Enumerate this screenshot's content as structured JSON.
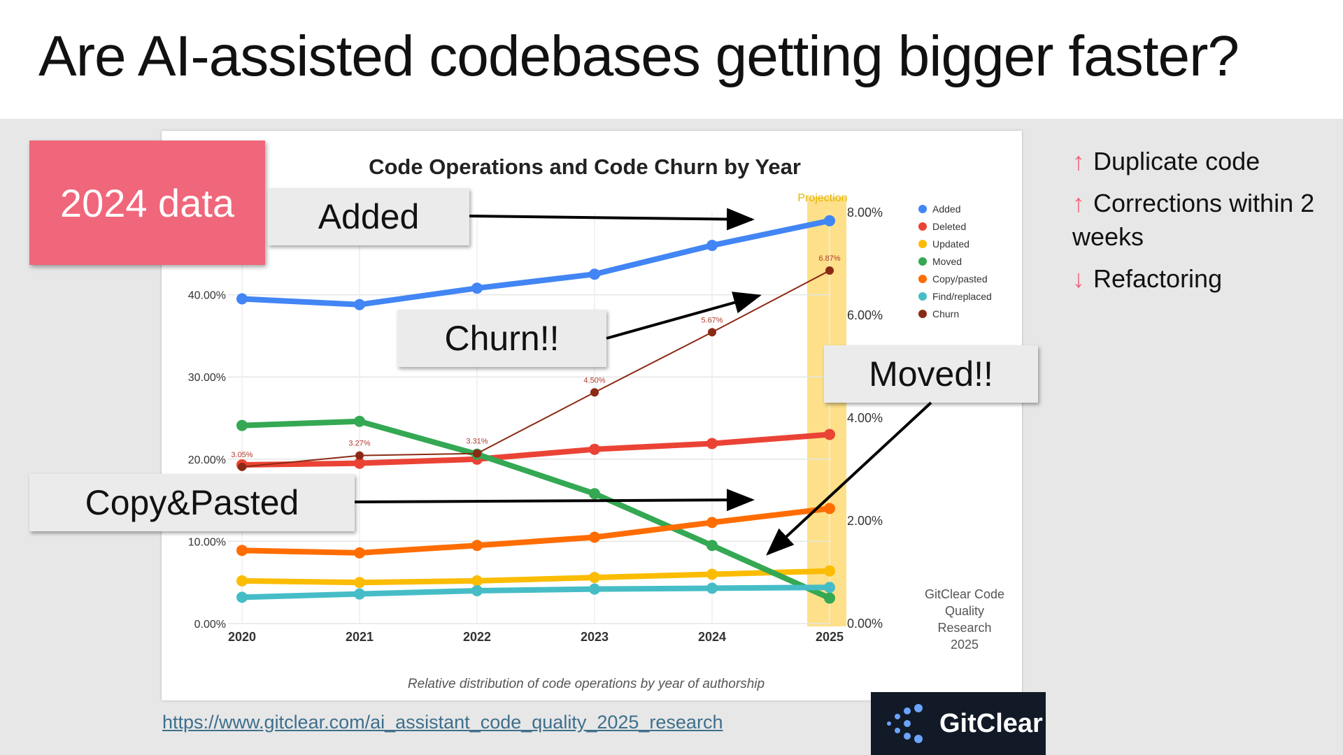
{
  "slide": {
    "title": "Are AI-assisted codebases getting bigger faster?",
    "badge": "2024 data",
    "callouts": {
      "added": "Added",
      "churn": "Churn!!",
      "moved": "Moved!!",
      "copy_pasted": "Copy&Pasted"
    },
    "bullets": [
      {
        "arrow": "↑",
        "text": "Duplicate code"
      },
      {
        "arrow": "↑",
        "text": "Corrections within 2 weeks"
      },
      {
        "arrow": "↓",
        "text": "Refactoring"
      }
    ],
    "link": "https://www.gitclear.com/ai_assistant_code_quality_2025_research",
    "logo_text": "GitClear"
  },
  "colors": {
    "badge": "#f0667a",
    "projection": "#fde089"
  },
  "chart_data": {
    "type": "line",
    "title": "Code Operations and Code Churn by Year",
    "xlabel": "Relative distribution of code operations by year of authorship",
    "categories": [
      "2020",
      "2021",
      "2022",
      "2023",
      "2024",
      "2025"
    ],
    "ylim_left": [
      0,
      50
    ],
    "yticks_left": [
      "0.00%",
      "10.00%",
      "20.00%",
      "30.00%",
      "40.00%"
    ],
    "ylim_right": [
      0,
      8
    ],
    "yticks_right": [
      "0.00%",
      "2.00%",
      "4.00%",
      "6.00%",
      "8.00%"
    ],
    "projection_label": "Projection",
    "watermark": "GitClear Code Quality Research 2025",
    "series": [
      {
        "name": "Added",
        "color": "#4285f4",
        "axis": "left",
        "values": [
          39.5,
          38.8,
          40.8,
          42.5,
          46.0,
          49.0
        ]
      },
      {
        "name": "Deleted",
        "color": "#ea4335",
        "axis": "left",
        "values": [
          19.3,
          19.5,
          20.0,
          21.2,
          21.9,
          23.0
        ]
      },
      {
        "name": "Updated",
        "color": "#fbbc04",
        "axis": "left",
        "values": [
          5.2,
          5.0,
          5.2,
          5.6,
          6.0,
          6.4
        ]
      },
      {
        "name": "Moved",
        "color": "#34a853",
        "axis": "left",
        "values": [
          24.1,
          24.6,
          20.6,
          15.8,
          9.5,
          3.1
        ]
      },
      {
        "name": "Copy/pasted",
        "color": "#ff6d01",
        "axis": "left",
        "values": [
          8.9,
          8.6,
          9.5,
          10.5,
          12.3,
          14.0
        ]
      },
      {
        "name": "Find/replaced",
        "color": "#46bdc6",
        "axis": "left",
        "values": [
          3.2,
          3.6,
          4.0,
          4.2,
          4.3,
          4.4
        ]
      },
      {
        "name": "Churn",
        "color": "#8b2a14",
        "axis": "right",
        "values": [
          3.05,
          3.27,
          3.31,
          4.5,
          5.67,
          6.87
        ],
        "labels": [
          "3.05%",
          "3.27%",
          "3.31%",
          "4.50%",
          "5.67%",
          "6.87%"
        ]
      }
    ]
  }
}
